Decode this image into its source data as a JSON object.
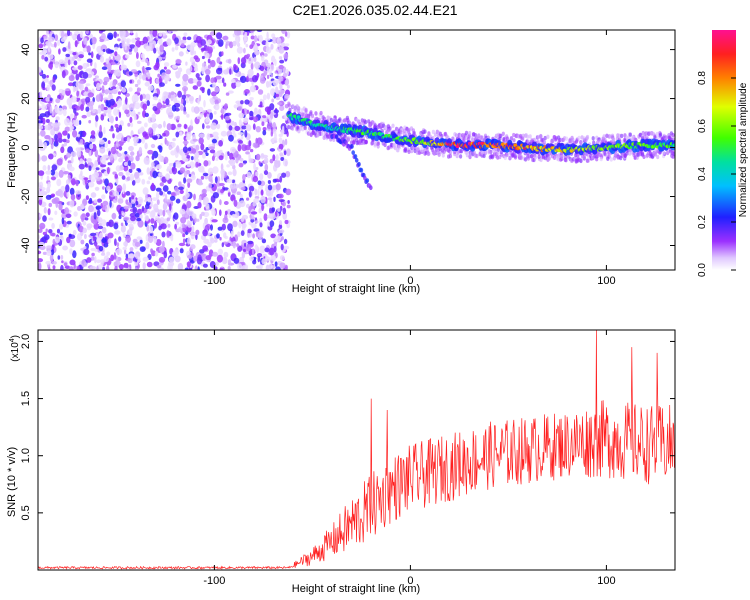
{
  "figure_title": "C2E1.2026.035.02.44.E21",
  "colors": {
    "signal_line": "#ff2020",
    "axis": "#000000",
    "background": "#ffffff"
  },
  "chart_data": [
    {
      "type": "heatmap",
      "title": "C2E1.2026.035.02.44.E21",
      "xlabel": "Height of straight line (km)",
      "ylabel": "Frequency (Hz)",
      "xlim": [
        -190,
        135
      ],
      "ylim": [
        -50,
        48
      ],
      "xticks": [
        -100,
        0,
        100
      ],
      "xtick_labels": [
        "-100",
        "0",
        "100"
      ],
      "yticks": [
        -40,
        -20,
        0,
        20,
        40
      ],
      "ytick_labels": [
        "-40",
        "-20",
        "0",
        "20",
        "40"
      ],
      "colorbar": {
        "label": "Normalized spectral amplitude",
        "range": [
          0,
          1
        ],
        "ticks": [
          0.0,
          0.2,
          0.4,
          0.6,
          0.8
        ],
        "tick_labels": [
          "0.0",
          "0.2",
          "0.4",
          "0.6",
          "0.8"
        ],
        "colormap": "rainbow"
      },
      "noise_region_x": [
        -190,
        -62
      ],
      "signal_track": [
        {
          "x": -62,
          "freq": 13,
          "amp": 0.5
        },
        {
          "x": -50,
          "freq": 10,
          "amp": 0.5
        },
        {
          "x": -40,
          "freq": 8,
          "amp": 0.45
        },
        {
          "x": -30,
          "freq": 7,
          "amp": 0.55
        },
        {
          "x": -20,
          "freq": 6,
          "amp": 0.5
        },
        {
          "x": -10,
          "freq": 4,
          "amp": 0.55
        },
        {
          "x": 0,
          "freq": 3,
          "amp": 0.6
        },
        {
          "x": 10,
          "freq": 2,
          "amp": 0.7
        },
        {
          "x": 20,
          "freq": 1,
          "amp": 0.9
        },
        {
          "x": 40,
          "freq": 1,
          "amp": 0.95
        },
        {
          "x": 60,
          "freq": 0,
          "amp": 0.85
        },
        {
          "x": 80,
          "freq": -1,
          "amp": 0.7
        },
        {
          "x": 100,
          "freq": 0,
          "amp": 0.6
        },
        {
          "x": 120,
          "freq": 1,
          "amp": 0.6
        },
        {
          "x": 135,
          "freq": 1,
          "amp": 0.5
        }
      ],
      "secondary_branch": [
        {
          "x": -40,
          "freq": 5
        },
        {
          "x": -30,
          "freq": 0
        },
        {
          "x": -25,
          "freq": -10
        },
        {
          "x": -20,
          "freq": -17
        }
      ]
    },
    {
      "type": "line",
      "title": "",
      "xlabel": "Height of straight line (km)",
      "ylabel": "SNR (10 * v/v)",
      "ylabel_scale": "(x10^4)",
      "ylabel_scale_base": "(x10",
      "ylabel_scale_exp": "4",
      "ylabel_scale_close": ")",
      "xlim": [
        -190,
        135
      ],
      "ylim": [
        0,
        2.1
      ],
      "xticks": [
        -100,
        0,
        100
      ],
      "xtick_labels": [
        "-100",
        "0",
        "100"
      ],
      "yticks": [
        0.5,
        1.0,
        1.5,
        2.0
      ],
      "ytick_labels": [
        "0.5",
        "1.0",
        "1.5",
        "2.0"
      ],
      "series": [
        {
          "name": "SNR",
          "color": "#ff2020",
          "envelope": [
            {
              "x": -190,
              "mean": 0.02,
              "spread": 0.01
            },
            {
              "x": -62,
              "mean": 0.02,
              "spread": 0.01
            },
            {
              "x": -50,
              "mean": 0.12,
              "spread": 0.08
            },
            {
              "x": -40,
              "mean": 0.25,
              "spread": 0.15
            },
            {
              "x": -30,
              "mean": 0.4,
              "spread": 0.25
            },
            {
              "x": -20,
              "mean": 0.55,
              "spread": 0.3
            },
            {
              "x": -10,
              "mean": 0.7,
              "spread": 0.3
            },
            {
              "x": 0,
              "mean": 0.8,
              "spread": 0.3
            },
            {
              "x": 20,
              "mean": 0.9,
              "spread": 0.3
            },
            {
              "x": 40,
              "mean": 1.0,
              "spread": 0.3
            },
            {
              "x": 60,
              "mean": 1.05,
              "spread": 0.3
            },
            {
              "x": 80,
              "mean": 1.1,
              "spread": 0.3
            },
            {
              "x": 100,
              "mean": 1.15,
              "spread": 0.35
            },
            {
              "x": 120,
              "mean": 1.1,
              "spread": 0.35
            },
            {
              "x": 135,
              "mean": 1.1,
              "spread": 0.35
            }
          ],
          "peaks": [
            {
              "x": -20,
              "y": 1.5
            },
            {
              "x": -12,
              "y": 1.4
            },
            {
              "x": 95,
              "y": 2.1
            },
            {
              "x": 113,
              "y": 1.95
            },
            {
              "x": 126,
              "y": 1.9
            }
          ]
        }
      ]
    }
  ]
}
